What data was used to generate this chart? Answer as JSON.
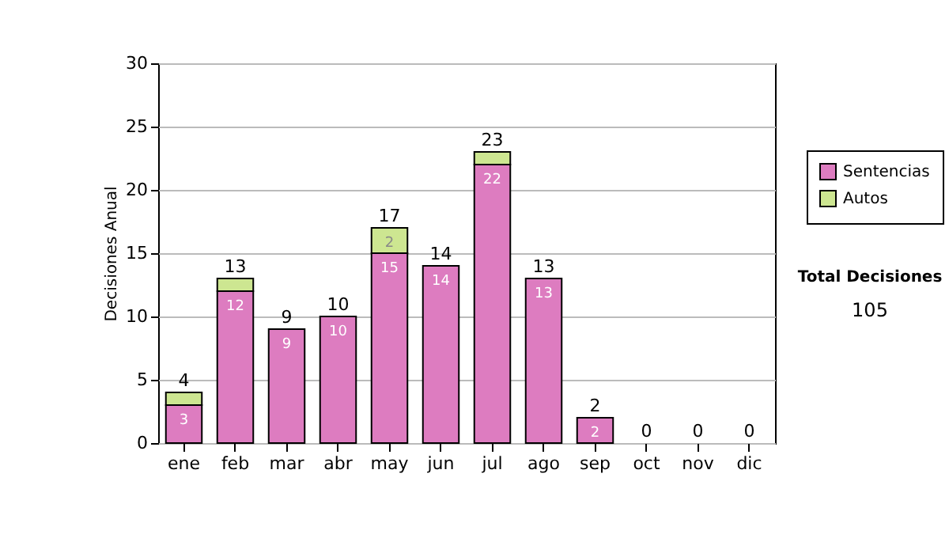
{
  "chart_data": {
    "type": "bar",
    "stacked": true,
    "ylabel": "Decisiones Anual",
    "categories": [
      "ene",
      "feb",
      "mar",
      "abr",
      "may",
      "jun",
      "jul",
      "ago",
      "sep",
      "oct",
      "nov",
      "dic"
    ],
    "series": [
      {
        "name": "Sentencias",
        "color": "#dd7cc0",
        "values": [
          3,
          12,
          9,
          10,
          15,
          14,
          22,
          13,
          2,
          0,
          0,
          0
        ],
        "value_labels": [
          "3",
          "12",
          "9",
          "10",
          "15",
          "14",
          "22",
          "13",
          "2",
          null,
          null,
          null
        ]
      },
      {
        "name": "Autos",
        "color": "#cde691",
        "values": [
          1,
          1,
          0,
          0,
          2,
          0,
          1,
          0,
          0,
          0,
          0,
          0
        ],
        "value_labels": [
          null,
          null,
          null,
          null,
          "2",
          null,
          null,
          null,
          null,
          null,
          null,
          null
        ]
      }
    ],
    "totals": [
      "4",
      "13",
      "9",
      "10",
      "17",
      "14",
      "23",
      "13",
      "2",
      "0",
      "0",
      "0"
    ],
    "ylim": [
      0,
      30
    ],
    "yticks": [
      0,
      5,
      10,
      15,
      20,
      25,
      30
    ],
    "grid": "y",
    "legend": "right",
    "annotations": [
      "Total Decisiones",
      "105"
    ]
  }
}
